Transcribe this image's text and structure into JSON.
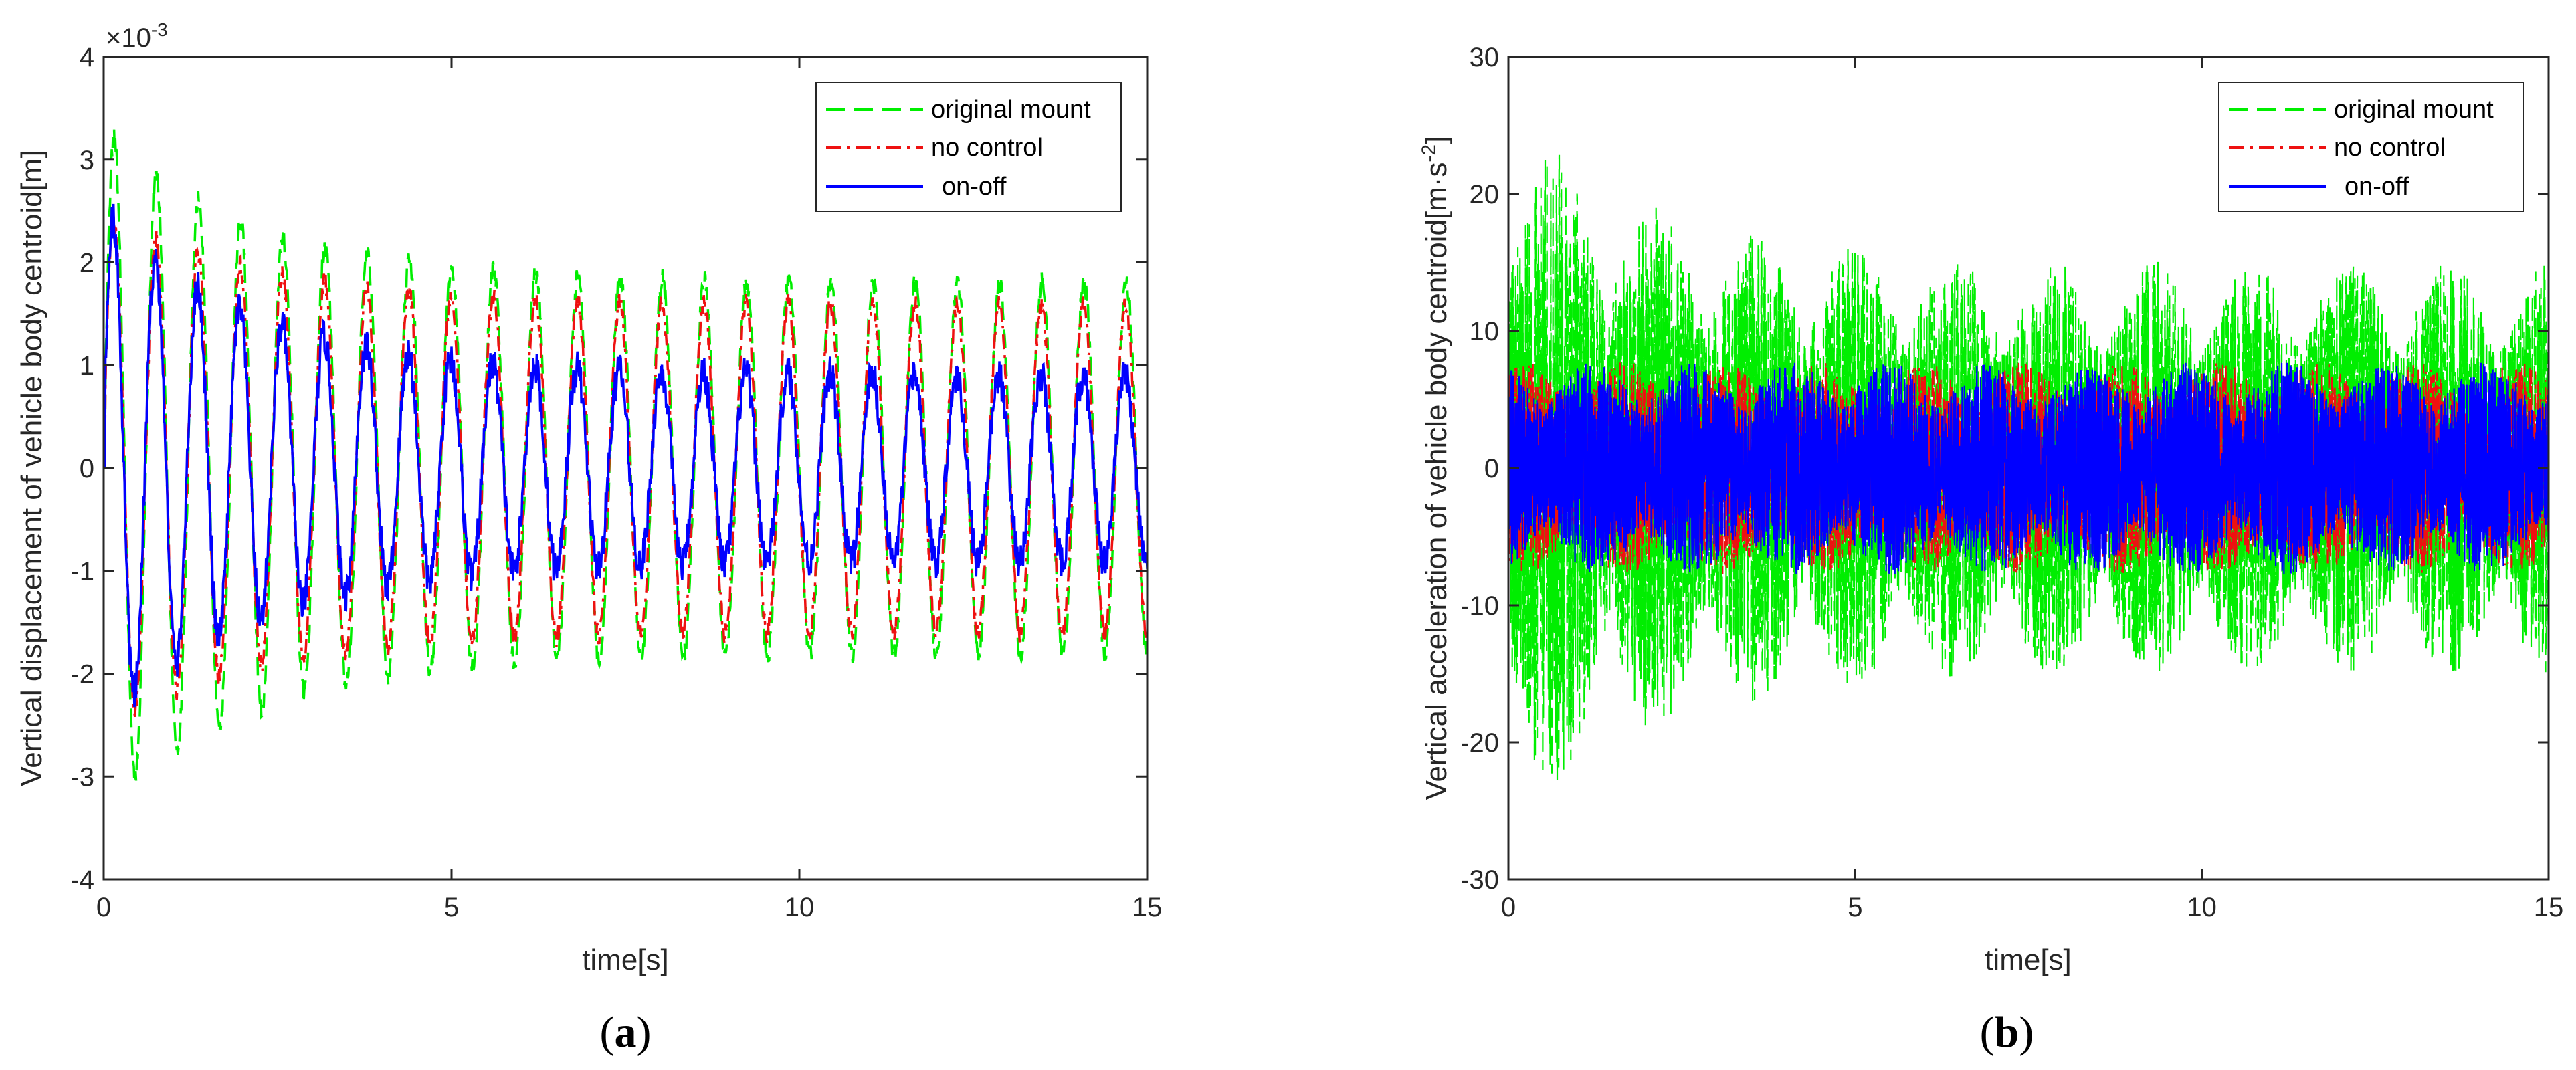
{
  "chart_data": [
    {
      "type": "line",
      "panel": "a",
      "caption": {
        "open": "(",
        "letter": "a",
        "close": ")"
      },
      "xlabel": "time[s]",
      "ylabel": "Vertical displacement of vehicle body centroid[m]",
      "exponent_base": "×10",
      "exponent_power": "-3",
      "xlim": [
        0,
        15
      ],
      "ylim": [
        -4,
        4
      ],
      "xticks": [
        0,
        5,
        10,
        15
      ],
      "xtick_labels": [
        "0",
        "5",
        "10",
        "15"
      ],
      "yticks": [
        -4,
        -3,
        -2,
        -1,
        0,
        1,
        2,
        3,
        4
      ],
      "ytick_labels": [
        "-4",
        "-3",
        "-2",
        "-1",
        "0",
        "1",
        "2",
        "3",
        "4"
      ],
      "legend": [
        "original mount",
        "no control",
        "on-off"
      ],
      "legend_position": "top-right",
      "signal": {
        "frequency_hz": 1.65,
        "duration_s": 15
      },
      "series": [
        {
          "name": "original mount",
          "color": "#00ee00",
          "style": "dashed",
          "peak_start": 3.3,
          "peak_end": 1.8
        },
        {
          "name": "no control",
          "color": "#ee1111",
          "style": "dashdot",
          "peak_start": 2.5,
          "peak_end": 1.6
        },
        {
          "name": "on-off",
          "color": "#0000ff",
          "style": "solid",
          "peak_start": 2.5,
          "peak_end": 0.9
        }
      ]
    },
    {
      "type": "line",
      "panel": "b",
      "caption": {
        "open": "(",
        "letter": "b",
        "close": ")"
      },
      "xlabel": "time[s]",
      "ylabel_main": "Vertical acceleration of vehicle body centroid[m·s",
      "ylabel_sup": "-2",
      "ylabel_end": "]",
      "xlim": [
        0,
        15
      ],
      "ylim": [
        -30,
        30
      ],
      "xticks": [
        0,
        5,
        10,
        15
      ],
      "xtick_labels": [
        "0",
        "5",
        "10",
        "15"
      ],
      "yticks": [
        -30,
        -20,
        -10,
        0,
        10,
        20,
        30
      ],
      "ytick_labels": [
        "-30",
        "-20",
        "-10",
        "0",
        "10",
        "20",
        "30"
      ],
      "legend": [
        "original mount",
        "no control",
        "on-off"
      ],
      "legend_position": "top-right",
      "signal": {
        "frequency_hz": 8,
        "duration_s": 15
      },
      "series": [
        {
          "name": "original mount",
          "color": "#00ee00",
          "style": "dashed",
          "peak_start": 26,
          "peak_end": 15
        },
        {
          "name": "no control",
          "color": "#ee1111",
          "style": "dashdot",
          "peak_start": 8,
          "peak_end": 8
        },
        {
          "name": "on-off",
          "color": "#0000ff",
          "style": "solid",
          "peak_start": 8,
          "peak_end": 8
        }
      ]
    }
  ]
}
